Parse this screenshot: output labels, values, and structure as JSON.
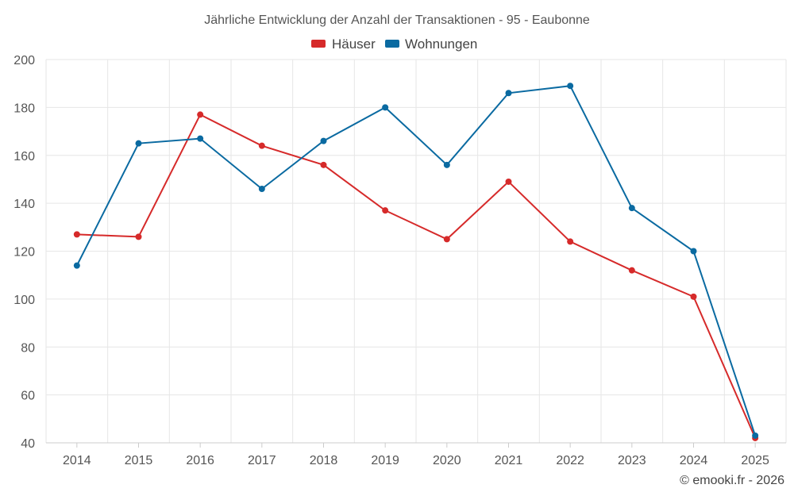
{
  "chart_data": {
    "type": "line",
    "title": "Jährliche Entwicklung der Anzahl der Transaktionen - 95 - Eaubonne",
    "xlabel": "",
    "ylabel": "",
    "categories": [
      "2014",
      "2015",
      "2016",
      "2017",
      "2018",
      "2019",
      "2020",
      "2021",
      "2022",
      "2023",
      "2024",
      "2025"
    ],
    "ylim": [
      40,
      200
    ],
    "yticks": [
      40,
      60,
      80,
      100,
      120,
      140,
      160,
      180,
      200
    ],
    "grid": true,
    "legend_position": "top-center",
    "series": [
      {
        "name": "Häuser",
        "color": "#d62a2a",
        "values": [
          127,
          126,
          177,
          164,
          156,
          137,
          125,
          149,
          124,
          112,
          101,
          42
        ]
      },
      {
        "name": "Wohnungen",
        "color": "#0a6aa1",
        "values": [
          114,
          165,
          167,
          146,
          166,
          180,
          156,
          186,
          189,
          138,
          120,
          43
        ]
      }
    ],
    "credit": "© emooki.fr - 2026"
  }
}
